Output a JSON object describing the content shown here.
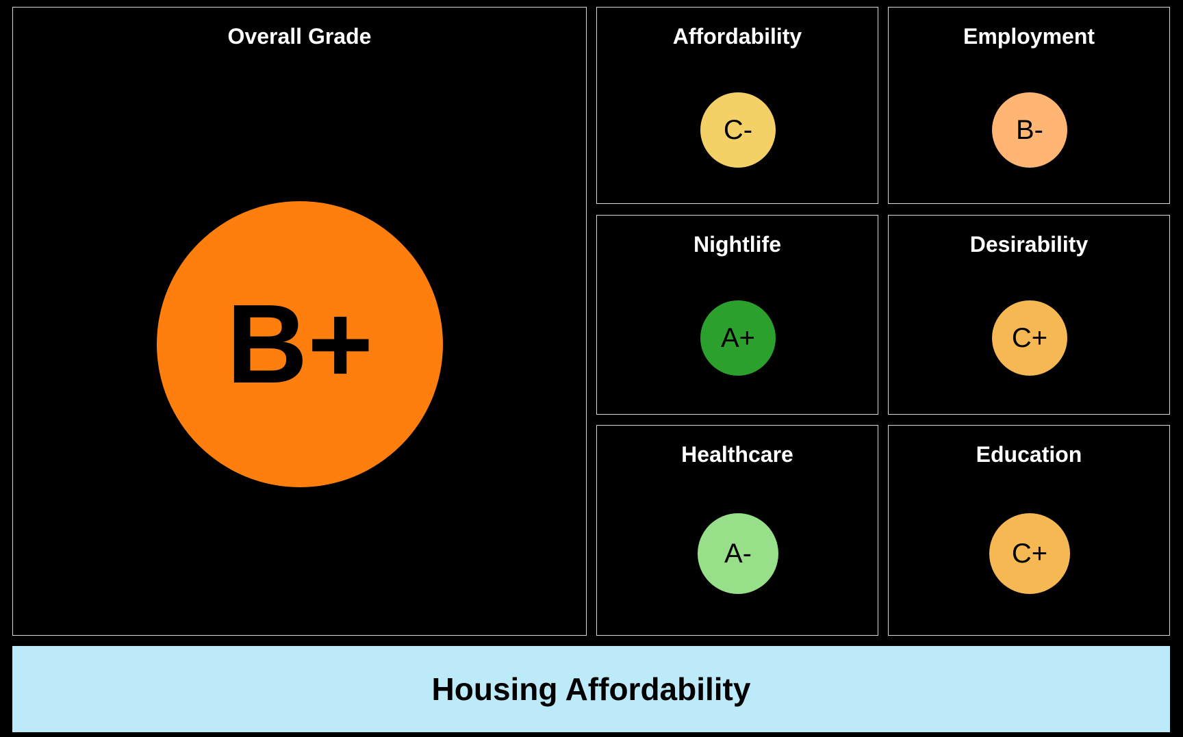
{
  "overall": {
    "title": "Overall Grade",
    "grade": "B+",
    "color": "#ff7f0e"
  },
  "categories": [
    {
      "title": "Affordability",
      "grade": "C-",
      "color": "#f4d166"
    },
    {
      "title": "Employment",
      "grade": "B-",
      "color": "#ffb574"
    },
    {
      "title": "Nightlife",
      "grade": "A+",
      "color": "#2ca02c"
    },
    {
      "title": "Desirability",
      "grade": "C+",
      "color": "#f5b853"
    },
    {
      "title": "Healthcare",
      "grade": "A-",
      "color": "#98df8a"
    },
    {
      "title": "Education",
      "grade": "C+",
      "color": "#f5b853"
    }
  ],
  "footer": {
    "label": "Housing Affordability"
  }
}
